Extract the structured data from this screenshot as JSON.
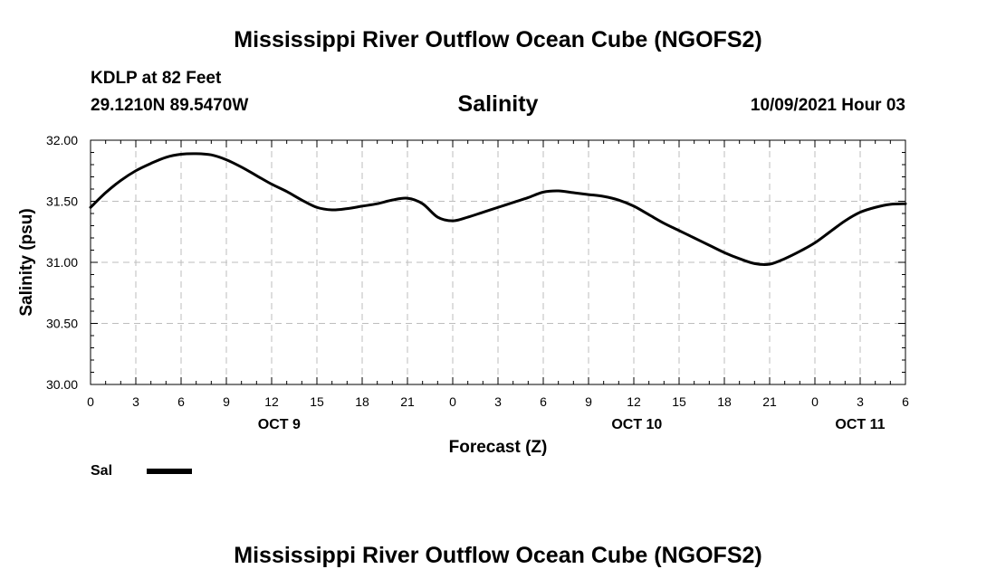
{
  "header": {
    "title": "Mississippi River Outflow Ocean Cube (NGOFS2)",
    "station": "KDLP at 82 Feet",
    "coords": "29.1210N  89.5470W",
    "variable": "Salinity",
    "run_time": "10/09/2021 Hour 03"
  },
  "footer": {
    "title": "Mississippi River Outflow Ocean Cube (NGOFS2)"
  },
  "legend": {
    "label": "Sal",
    "color": "#000000"
  },
  "chart_data": {
    "type": "line",
    "title": "Salinity",
    "xlabel": "Forecast (Z)",
    "ylabel": "Salinity (psu)",
    "ylim": [
      30.0,
      32.0
    ],
    "xlim": [
      0,
      54
    ],
    "grid": true,
    "legend_position": "bottom-left",
    "y_ticks": [
      "30.00",
      "30.50",
      "31.00",
      "31.50",
      "32.00"
    ],
    "x_tick_hours": [
      0,
      3,
      6,
      9,
      12,
      15,
      18,
      21,
      24,
      27,
      30,
      33,
      36,
      39,
      42,
      45,
      48,
      51,
      54
    ],
    "x_tick_labels": [
      "0",
      "3",
      "6",
      "9",
      "12",
      "15",
      "18",
      "21",
      "0",
      "3",
      "6",
      "9",
      "12",
      "15",
      "18",
      "21",
      "0",
      "3",
      "6"
    ],
    "day_labels": [
      {
        "hour": 12.5,
        "label": "OCT 9"
      },
      {
        "hour": 36.2,
        "label": "OCT 10"
      },
      {
        "hour": 51,
        "label": "OCT 11"
      }
    ],
    "series": [
      {
        "name": "Sal",
        "x": [
          0,
          1,
          2,
          3,
          4,
          5,
          6,
          7,
          8,
          9,
          10,
          11,
          12,
          13,
          14,
          15,
          16,
          17,
          18,
          19,
          20,
          21,
          22,
          23,
          24,
          25,
          26,
          27,
          28,
          29,
          30,
          31,
          32,
          33,
          34,
          35,
          36,
          37,
          38,
          39,
          40,
          41,
          42,
          43,
          44,
          45,
          46,
          47,
          48,
          49,
          50,
          51,
          52,
          53,
          54
        ],
        "values": [
          31.45,
          31.57,
          31.67,
          31.75,
          31.81,
          31.86,
          31.885,
          31.89,
          31.88,
          31.84,
          31.78,
          31.71,
          31.64,
          31.58,
          31.51,
          31.45,
          31.43,
          31.44,
          31.46,
          31.48,
          31.51,
          31.525,
          31.48,
          31.37,
          31.34,
          31.37,
          31.41,
          31.45,
          31.49,
          31.53,
          31.575,
          31.585,
          31.57,
          31.555,
          31.54,
          31.51,
          31.46,
          31.39,
          31.32,
          31.26,
          31.2,
          31.14,
          31.08,
          31.03,
          30.99,
          30.985,
          31.03,
          31.09,
          31.16,
          31.25,
          31.34,
          31.41,
          31.45,
          31.475,
          31.48
        ]
      }
    ]
  }
}
